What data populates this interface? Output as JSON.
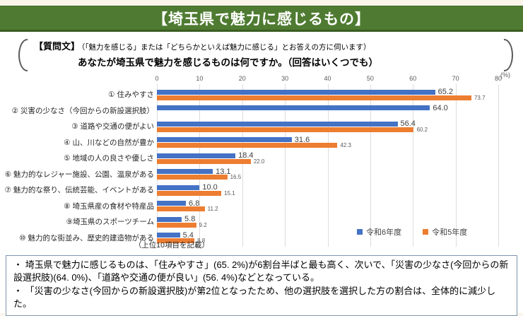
{
  "page": {
    "title": "【埼玉県で魅力に感じるもの】",
    "question": {
      "heading": "【質問文】",
      "condition": "（「魅力を感じる」または「どちらかといえば魅力に感じる」とお答えの方に伺います）",
      "body": "あなたが埼玉県で魅力を感じるものは何ですか。（回答はいくつでも）"
    },
    "summary_notes": [
      "・ 埼玉県で魅力に感じるものは、「住みやすさ」(65. 2%)が6割台半ばと最も高く、次いで、「災害の少なさ(今回からの新設選択肢)(64. 0%)、「道路や交通の便が良い」(56. 4%)などとなっている。",
      "・ 「災害の少なさ(今回からの新設選択肢)が第2位となったため、他の選択肢を選択した方の割合は、全体的に減少した。"
    ]
  },
  "chart_data": {
    "type": "bar",
    "orientation": "horizontal",
    "title": "",
    "unit_label": "(%)",
    "xlim": [
      0,
      80
    ],
    "axis_ticks": [
      0,
      10,
      20,
      30,
      40,
      50,
      60,
      70,
      80
    ],
    "grid": true,
    "legend_position": "inside-bottom-right",
    "categories": [
      "① 住みやすさ",
      "② 災害の少なさ（今回からの新設選択肢）",
      "③ 道路や交通の便がよい",
      "④ 山、川などの自然が豊か",
      "⑤ 地域の人の良さや優しさ",
      "⑥ 魅力的なレジャー施設、公園、温泉がある",
      "⑦ 魅力的な祭り、伝統芸能、イベントがある",
      "⑧ 埼玉県産の食材や特産品",
      "⑨埼玉県のスポーツチーム",
      "⑩ 魅力的な街並み、歴史的建造物がある"
    ],
    "series": [
      {
        "name": "令和6年度",
        "color": "#4472C4",
        "values": [
          65.2,
          64.0,
          56.4,
          31.6,
          18.4,
          13.1,
          10.0,
          6.8,
          5.8,
          5.4
        ]
      },
      {
        "name": "令和5年度",
        "color": "#ED7D31",
        "values": [
          73.7,
          null,
          60.2,
          42.3,
          22.0,
          16.5,
          15.1,
          11.2,
          9.2,
          8.8
        ]
      }
    ],
    "footnote": "（上位10項目を記載）"
  }
}
